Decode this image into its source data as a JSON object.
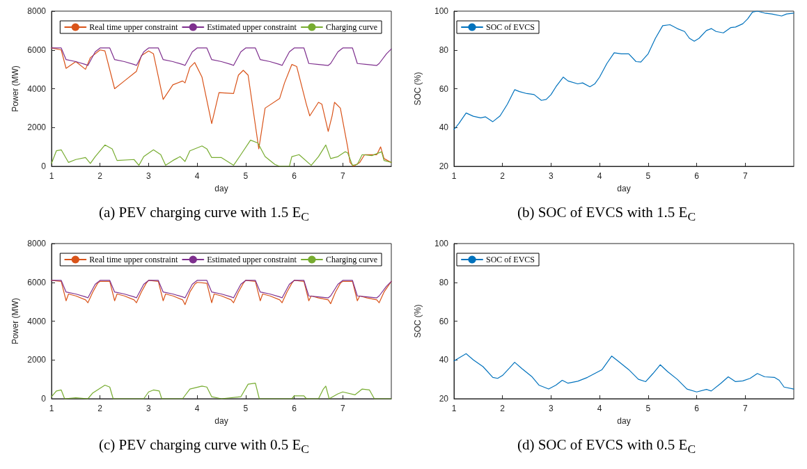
{
  "chart_data": [
    {
      "type": "line",
      "title": "(a) PEV charging curve with 1.5 E$_{C}$",
      "xlabel": "day",
      "ylabel": "Power (MW)",
      "xlim": [
        1,
        8
      ],
      "xticks": [
        1,
        2,
        3,
        4,
        5,
        6,
        7
      ],
      "ylim": [
        0,
        8000
      ],
      "yticks": [
        0,
        2000,
        4000,
        6000,
        8000
      ],
      "legend": "top right",
      "marker": "none",
      "line_style": "solid",
      "grid": false,
      "series": [
        {
          "name": "Real time upper constraint",
          "color": "#d95319",
          "x": [
            1,
            1.2,
            1.3,
            1.5,
            1.7,
            1.8,
            2,
            2.1,
            2.3,
            2.5,
            2.7,
            2.75,
            2.85,
            3,
            3.1,
            3.3,
            3.5,
            3.7,
            3.75,
            3.85,
            3.95,
            4.1,
            4.3,
            4.45,
            4.75,
            4.85,
            4.95,
            5.05,
            5.27,
            5.4,
            5.7,
            5.8,
            5.95,
            6.05,
            6.25,
            6.32,
            6.5,
            6.57,
            6.7,
            6.78,
            6.83,
            6.95,
            7.1,
            7.15,
            7.22,
            7.35,
            7.45,
            7.7,
            7.78,
            7.85,
            8
          ],
          "values": [
            6100,
            6000,
            5050,
            5400,
            5000,
            5600,
            6000,
            5950,
            4000,
            4400,
            4800,
            4900,
            5700,
            5950,
            5800,
            3450,
            4200,
            4400,
            4300,
            5100,
            5350,
            4600,
            2200,
            3800,
            3750,
            4700,
            4950,
            4700,
            900,
            3000,
            3500,
            4300,
            5250,
            5150,
            3200,
            2600,
            3300,
            3200,
            1800,
            2600,
            3300,
            3000,
            1000,
            200,
            0,
            200,
            600,
            600,
            1000,
            400,
            200
          ]
        },
        {
          "name": "Estimated upper constraint",
          "color": "#7e2f8e",
          "x": [
            1,
            1.2,
            1.3,
            1.5,
            1.7,
            1.75,
            1.9,
            2,
            2.2,
            2.3,
            2.5,
            2.7,
            2.75,
            2.9,
            3,
            3.2,
            3.3,
            3.5,
            3.7,
            3.75,
            3.9,
            4,
            4.2,
            4.3,
            4.5,
            4.7,
            4.75,
            4.9,
            5,
            5.2,
            5.3,
            5.5,
            5.7,
            5.75,
            5.9,
            6,
            6.2,
            6.3,
            6.5,
            6.7,
            6.75,
            6.9,
            7,
            7.2,
            7.3,
            7.5,
            7.7,
            7.75,
            7.9,
            8
          ],
          "values": [
            6100,
            6100,
            5500,
            5400,
            5250,
            5200,
            5900,
            6100,
            6100,
            5500,
            5400,
            5250,
            5200,
            5900,
            6100,
            6100,
            5500,
            5400,
            5250,
            5200,
            5900,
            6100,
            6100,
            5500,
            5400,
            5250,
            5200,
            5900,
            6100,
            6100,
            5500,
            5400,
            5250,
            5200,
            5900,
            6100,
            6100,
            5300,
            5250,
            5200,
            5300,
            5900,
            6100,
            6100,
            5300,
            5250,
            5200,
            5300,
            5800,
            6050
          ]
        },
        {
          "name": "Charging curve",
          "color": "#77ac30",
          "x": [
            1,
            1.1,
            1.2,
            1.35,
            1.5,
            1.7,
            1.8,
            1.9,
            2.1,
            2.25,
            2.35,
            2.7,
            2.8,
            2.9,
            3.1,
            3.25,
            3.35,
            3.5,
            3.65,
            3.75,
            3.85,
            4.1,
            4.2,
            4.3,
            4.5,
            4.75,
            4.9,
            5.1,
            5.25,
            5.4,
            5.6,
            5.7,
            5.9,
            5.95,
            6.1,
            6.35,
            6.5,
            6.65,
            6.75,
            6.9,
            7.05,
            7.1,
            7.2,
            7.3,
            7.4,
            7.6,
            7.8,
            7.85,
            8
          ],
          "values": [
            150,
            800,
            850,
            200,
            350,
            450,
            150,
            500,
            1100,
            900,
            300,
            350,
            50,
            500,
            850,
            600,
            50,
            300,
            500,
            250,
            800,
            1050,
            900,
            450,
            450,
            50,
            600,
            1350,
            1200,
            500,
            100,
            0,
            0,
            500,
            600,
            50,
            500,
            1100,
            400,
            500,
            750,
            700,
            50,
            100,
            600,
            550,
            750,
            300,
            200
          ]
        }
      ]
    },
    {
      "type": "line",
      "title": "(b) SOC of EVCS with 1.5 E$_{C}$",
      "xlabel": "day",
      "ylabel": "SOC (%)",
      "xlim": [
        1,
        8
      ],
      "xticks": [
        1,
        2,
        3,
        4,
        5,
        6,
        7
      ],
      "ylim": [
        20,
        100
      ],
      "yticks": [
        20,
        40,
        60,
        80,
        100
      ],
      "legend": "top left",
      "marker": "none",
      "line_style": "solid",
      "grid": false,
      "series": [
        {
          "name": "SOC of EVCS",
          "color": "#0072bd",
          "x": [
            1,
            1.1,
            1.25,
            1.4,
            1.55,
            1.65,
            1.8,
            1.95,
            2.1,
            2.25,
            2.35,
            2.5,
            2.65,
            2.8,
            2.9,
            3,
            3.1,
            3.25,
            3.35,
            3.55,
            3.65,
            3.8,
            3.9,
            4,
            4.15,
            4.3,
            4.45,
            4.6,
            4.75,
            4.85,
            5,
            5.15,
            5.3,
            5.45,
            5.6,
            5.75,
            5.85,
            5.95,
            6.05,
            6.2,
            6.3,
            6.4,
            6.55,
            6.7,
            6.8,
            6.95,
            7.05,
            7.15,
            7.25,
            7.4,
            7.55,
            7.75,
            7.85,
            8
          ],
          "values": [
            39,
            42,
            47.5,
            45.8,
            45,
            45.5,
            43,
            46,
            52,
            59.5,
            58.5,
            57.5,
            57,
            54,
            54.5,
            57,
            61,
            66,
            64,
            62.5,
            63,
            61,
            62.5,
            66,
            73,
            78.5,
            78,
            78,
            74,
            73.8,
            78,
            86,
            92.5,
            93,
            91,
            89.5,
            86,
            84.5,
            86,
            90,
            91,
            89.5,
            88.8,
            91.5,
            91.8,
            93.5,
            96,
            99.5,
            100,
            99,
            98.5,
            97.5,
            98.5,
            99
          ]
        }
      ]
    },
    {
      "type": "line",
      "title": "(c) PEV charging curve with 0.5 E$_{C}$",
      "xlabel": "day",
      "ylabel": "Power (MW)",
      "xlim": [
        1,
        8
      ],
      "xticks": [
        1,
        2,
        3,
        4,
        5,
        6,
        7
      ],
      "ylim": [
        0,
        8000
      ],
      "yticks": [
        0,
        2000,
        4000,
        6000,
        8000
      ],
      "legend": "top right",
      "marker": "none",
      "line_style": "solid",
      "grid": false,
      "series": [
        {
          "name": "Real time upper constraint",
          "color": "#d95319",
          "x": [
            1,
            1.2,
            1.3,
            1.35,
            1.5,
            1.7,
            1.75,
            1.85,
            1.95,
            2,
            2.2,
            2.3,
            2.35,
            2.5,
            2.7,
            2.75,
            2.85,
            2.95,
            3,
            3.2,
            3.3,
            3.35,
            3.5,
            3.7,
            3.75,
            3.85,
            3.95,
            4,
            4.2,
            4.3,
            4.35,
            4.5,
            4.7,
            4.75,
            4.85,
            4.95,
            5,
            5.2,
            5.3,
            5.35,
            5.5,
            5.7,
            5.75,
            5.85,
            5.95,
            6,
            6.2,
            6.3,
            6.35,
            6.5,
            6.7,
            6.75,
            6.85,
            6.95,
            7,
            7.2,
            7.3,
            7.35,
            7.5,
            7.7,
            7.75,
            7.85,
            8
          ],
          "values": [
            6100,
            6050,
            5050,
            5400,
            5300,
            5100,
            4950,
            5500,
            5950,
            6050,
            6050,
            5050,
            5400,
            5300,
            5100,
            4950,
            5500,
            5950,
            6100,
            6050,
            5050,
            5400,
            5300,
            5100,
            4850,
            5500,
            5900,
            6000,
            5950,
            4950,
            5400,
            5300,
            5100,
            4950,
            5500,
            5950,
            6100,
            6050,
            5050,
            5400,
            5300,
            5100,
            4950,
            5500,
            5950,
            6100,
            6050,
            5050,
            5300,
            5200,
            5100,
            4900,
            5500,
            5950,
            6050,
            6050,
            5050,
            5300,
            5200,
            5100,
            4950,
            5500,
            6050
          ]
        },
        {
          "name": "Estimated upper constraint",
          "color": "#7e2f8e",
          "x": [
            1,
            1.2,
            1.3,
            1.5,
            1.7,
            1.75,
            1.9,
            2,
            2.2,
            2.3,
            2.5,
            2.7,
            2.75,
            2.9,
            3,
            3.2,
            3.3,
            3.5,
            3.7,
            3.75,
            3.9,
            4,
            4.2,
            4.3,
            4.5,
            4.7,
            4.75,
            4.9,
            5,
            5.2,
            5.3,
            5.5,
            5.7,
            5.75,
            5.9,
            6,
            6.2,
            6.3,
            6.5,
            6.7,
            6.75,
            6.9,
            7,
            7.2,
            7.3,
            7.5,
            7.7,
            7.75,
            7.9,
            8
          ],
          "values": [
            6100,
            6100,
            5500,
            5400,
            5250,
            5200,
            5900,
            6100,
            6100,
            5500,
            5400,
            5250,
            5200,
            5900,
            6100,
            6100,
            5500,
            5400,
            5250,
            5200,
            5900,
            6100,
            6100,
            5500,
            5400,
            5250,
            5200,
            5900,
            6100,
            6100,
            5500,
            5400,
            5250,
            5200,
            5900,
            6100,
            6100,
            5300,
            5250,
            5200,
            5300,
            5900,
            6100,
            6100,
            5300,
            5250,
            5200,
            5300,
            5800,
            6050
          ]
        },
        {
          "name": "Charging curve",
          "color": "#77ac30",
          "x": [
            1,
            1.1,
            1.2,
            1.27,
            1.5,
            1.75,
            1.85,
            2.1,
            2.2,
            2.27,
            2.9,
            3,
            3.1,
            3.22,
            3.27,
            3.7,
            3.85,
            4.1,
            4.2,
            4.3,
            4.5,
            4.9,
            5.05,
            5.2,
            5.28,
            5.95,
            6,
            6.2,
            6.25,
            6.5,
            6.6,
            6.65,
            6.72,
            6.9,
            7,
            7.25,
            7.4,
            7.55,
            7.65,
            8
          ],
          "values": [
            100,
            400,
            450,
            0,
            50,
            0,
            300,
            700,
            600,
            0,
            0,
            350,
            450,
            400,
            0,
            0,
            500,
            650,
            600,
            100,
            0,
            100,
            750,
            800,
            0,
            0,
            150,
            150,
            0,
            0,
            500,
            650,
            0,
            250,
            350,
            200,
            500,
            450,
            0,
            0
          ]
        }
      ]
    },
    {
      "type": "line",
      "title": "(d) SOC of EVCS with 0.5 E$_{C}$",
      "xlabel": "day",
      "ylabel": "SOC (%)",
      "xlim": [
        1,
        8
      ],
      "xticks": [
        1,
        2,
        3,
        4,
        5,
        6,
        7
      ],
      "ylim": [
        20,
        100
      ],
      "yticks": [
        20,
        40,
        60,
        80,
        100
      ],
      "legend": "top left",
      "marker": "none",
      "line_style": "solid",
      "grid": false,
      "series": [
        {
          "name": "SOC of EVCS",
          "color": "#0072bd",
          "x": [
            1,
            1.1,
            1.25,
            1.4,
            1.6,
            1.8,
            1.9,
            2,
            2.15,
            2.25,
            2.4,
            2.6,
            2.75,
            2.95,
            3.1,
            3.23,
            3.35,
            3.55,
            3.75,
            3.9,
            4.05,
            4.15,
            4.25,
            4.4,
            4.6,
            4.8,
            4.95,
            5.1,
            5.25,
            5.4,
            5.6,
            5.8,
            6,
            6.2,
            6.3,
            6.5,
            6.65,
            6.8,
            6.95,
            7.1,
            7.25,
            7.4,
            7.6,
            7.7,
            7.8,
            8
          ],
          "values": [
            39.5,
            41,
            43.2,
            40,
            36.5,
            31,
            30.5,
            32,
            36,
            38.8,
            35.5,
            31.5,
            27,
            25,
            27,
            29.5,
            28,
            29,
            31,
            33,
            35,
            38.5,
            42,
            39,
            35,
            30,
            28.8,
            33,
            37.5,
            34,
            30,
            25,
            23.5,
            24.8,
            24,
            28,
            31.3,
            28.8,
            29.2,
            30.5,
            33,
            31.3,
            31,
            29.5,
            26,
            25
          ]
        }
      ]
    }
  ]
}
